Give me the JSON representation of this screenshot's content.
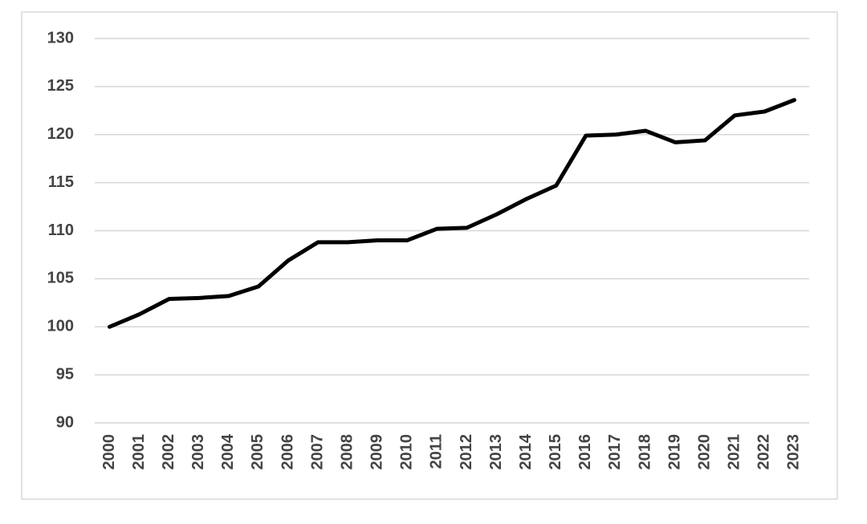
{
  "chart_data": {
    "type": "line",
    "categories": [
      "2000",
      "2001",
      "2002",
      "2003",
      "2004",
      "2005",
      "2006",
      "2007",
      "2008",
      "2009",
      "2010",
      "2011",
      "2012",
      "2013",
      "2014",
      "2015",
      "2016",
      "2017",
      "2018",
      "2019",
      "2020",
      "2021",
      "2022",
      "2023"
    ],
    "values": [
      100,
      101.3,
      102.9,
      103.0,
      103.2,
      104.2,
      106.9,
      108.8,
      108.8,
      109.0,
      109.0,
      110.2,
      110.3,
      111.7,
      113.3,
      114.7,
      119.9,
      120.0,
      120.4,
      119.2,
      119.4,
      122.0,
      122.4,
      123.6
    ],
    "color": "#000000",
    "ylim": [
      90,
      130
    ],
    "yticks": [
      90,
      95,
      100,
      105,
      110,
      115,
      120,
      125,
      130
    ],
    "grid": true
  }
}
